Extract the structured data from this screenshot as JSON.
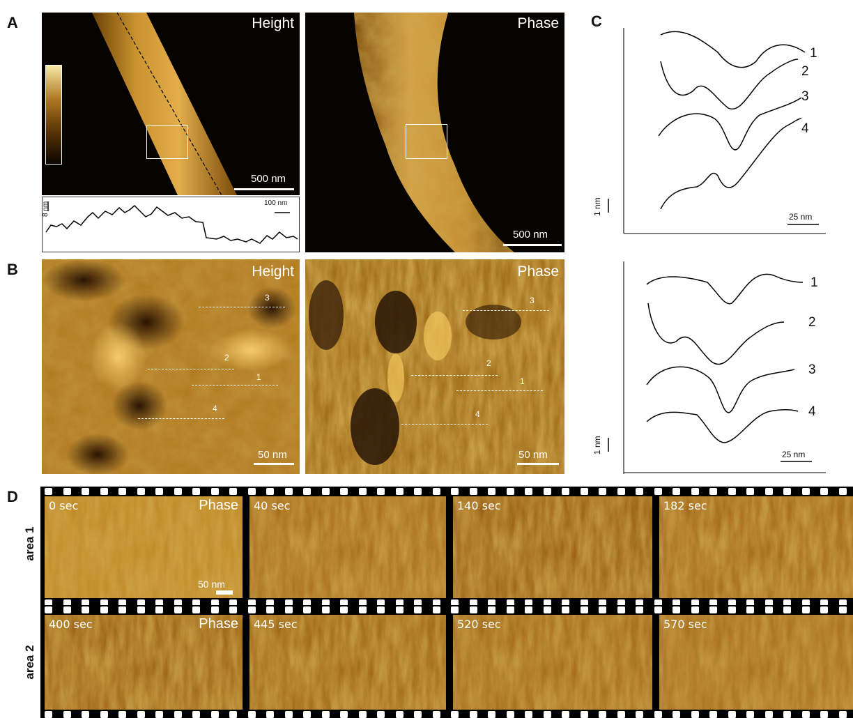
{
  "panels": {
    "A": {
      "letter": "A",
      "height_label": "Height",
      "phase_label": "Phase",
      "scale_height": "500 nm",
      "scale_phase": "500 nm",
      "profile_vscale": "8 nm",
      "profile_hscale": "100 nm"
    },
    "B": {
      "letter": "B",
      "height_label": "Height",
      "phase_label": "Phase",
      "scale_height": "50 nm",
      "scale_phase": "50 nm",
      "lines": [
        "1",
        "2",
        "3",
        "4"
      ]
    },
    "C": {
      "letter": "C",
      "top": {
        "curve_labels": [
          "1",
          "2",
          "3",
          "4"
        ],
        "vscale": "1 nm",
        "hscale": "25 nm"
      },
      "bottom": {
        "curve_labels": [
          "1",
          "2",
          "3",
          "4"
        ],
        "vscale": "1 nm",
        "hscale": "25 nm"
      }
    },
    "D": {
      "letter": "D",
      "row1_label": "area 1",
      "row2_label": "area 2",
      "row1_times": [
        "0 sec",
        "40 sec",
        "140 sec",
        "182 sec"
      ],
      "row2_times": [
        "400 sec",
        "445 sec",
        "520 sec",
        "570 sec"
      ],
      "row1_phase": "Phase",
      "row2_phase": "Phase",
      "scale": "50 nm"
    }
  },
  "colors": {
    "afm_dark": "#1a0d02",
    "afm_mid": "#9a6414",
    "afm_light": "#f0d27a",
    "background": "#000000"
  }
}
